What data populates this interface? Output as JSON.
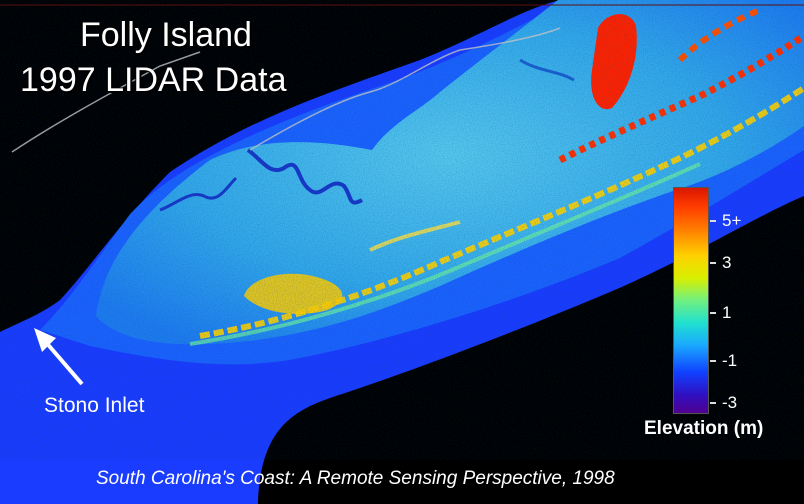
{
  "title": {
    "line1": "Folly Island",
    "line2": "1997 LIDAR Data"
  },
  "map": {
    "label_inlet": "Stono Inlet",
    "arrow_icon": "arrow-up-left-icon"
  },
  "legend": {
    "title": "Elevation (m)",
    "ticks": [
      "5+",
      "3",
      "1",
      "-1",
      "-3"
    ],
    "colors": [
      "#d81800",
      "#ff7a00",
      "#ffd000",
      "#70f080",
      "#20e0d0",
      "#1aa8ff",
      "#1040ff",
      "#500090"
    ]
  },
  "caption": "South Carolina's Coast: A Remote Sensing Perspective, 1998",
  "colors": {
    "background": "#000000",
    "water": "#1a3cff",
    "marsh": "#2aa4e8",
    "high_ground": "#ff2a00"
  }
}
